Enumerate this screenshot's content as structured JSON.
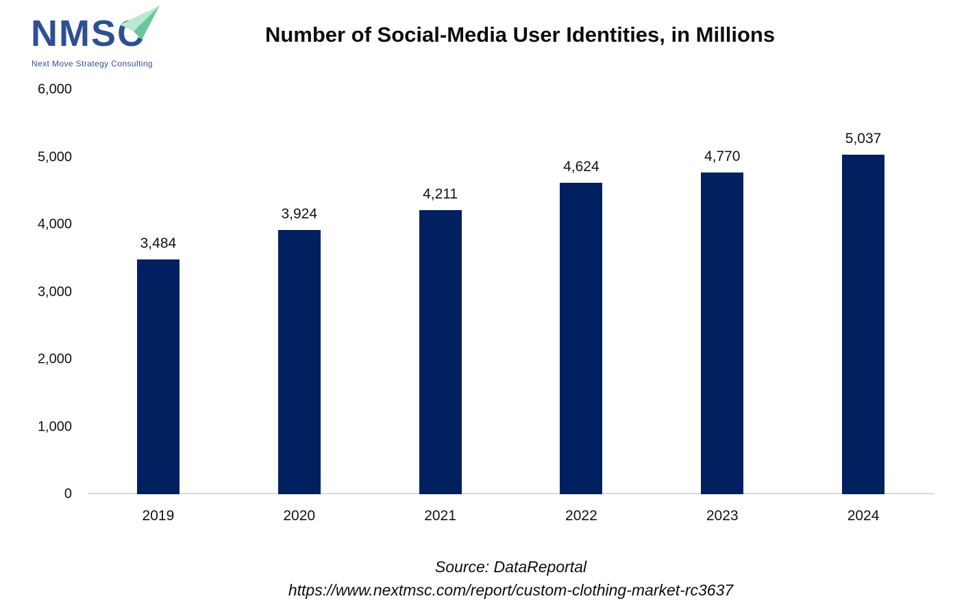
{
  "logo": {
    "acronym": "NMSC",
    "tagline": "Next Move Strategy Consulting",
    "colors": {
      "text": "#2f4f92",
      "arrow_light": "#b9e8d0",
      "arrow_dark": "#69c79c"
    }
  },
  "header": {
    "title": "Number of Social-Media User Identities, in Millions"
  },
  "chart_data": {
    "type": "bar",
    "title": "Number of Social-Media User Identities, in Millions",
    "categories": [
      "2019",
      "2020",
      "2021",
      "2022",
      "2023",
      "2024"
    ],
    "values": [
      3484,
      3924,
      4211,
      4624,
      4770,
      5037
    ],
    "data_labels": [
      "3,484",
      "3,924",
      "4,211",
      "4,624",
      "4,770",
      "5,037"
    ],
    "xlabel": "",
    "ylabel": "",
    "ylim": [
      0,
      6000
    ],
    "yticks": [
      0,
      1000,
      2000,
      3000,
      4000,
      5000,
      6000
    ],
    "ytick_labels": [
      "0",
      "1,000",
      "2,000",
      "3,000",
      "4,000",
      "5,000",
      "6,000"
    ],
    "grid": false,
    "legend": "none",
    "bar_color": "#002060",
    "axis_line_color": "#d9d9d9"
  },
  "footer": {
    "source_line1": "Source: DataReportal",
    "source_line2": "https://www.nextmsc.com/report/custom-clothing-market-rc3637"
  }
}
